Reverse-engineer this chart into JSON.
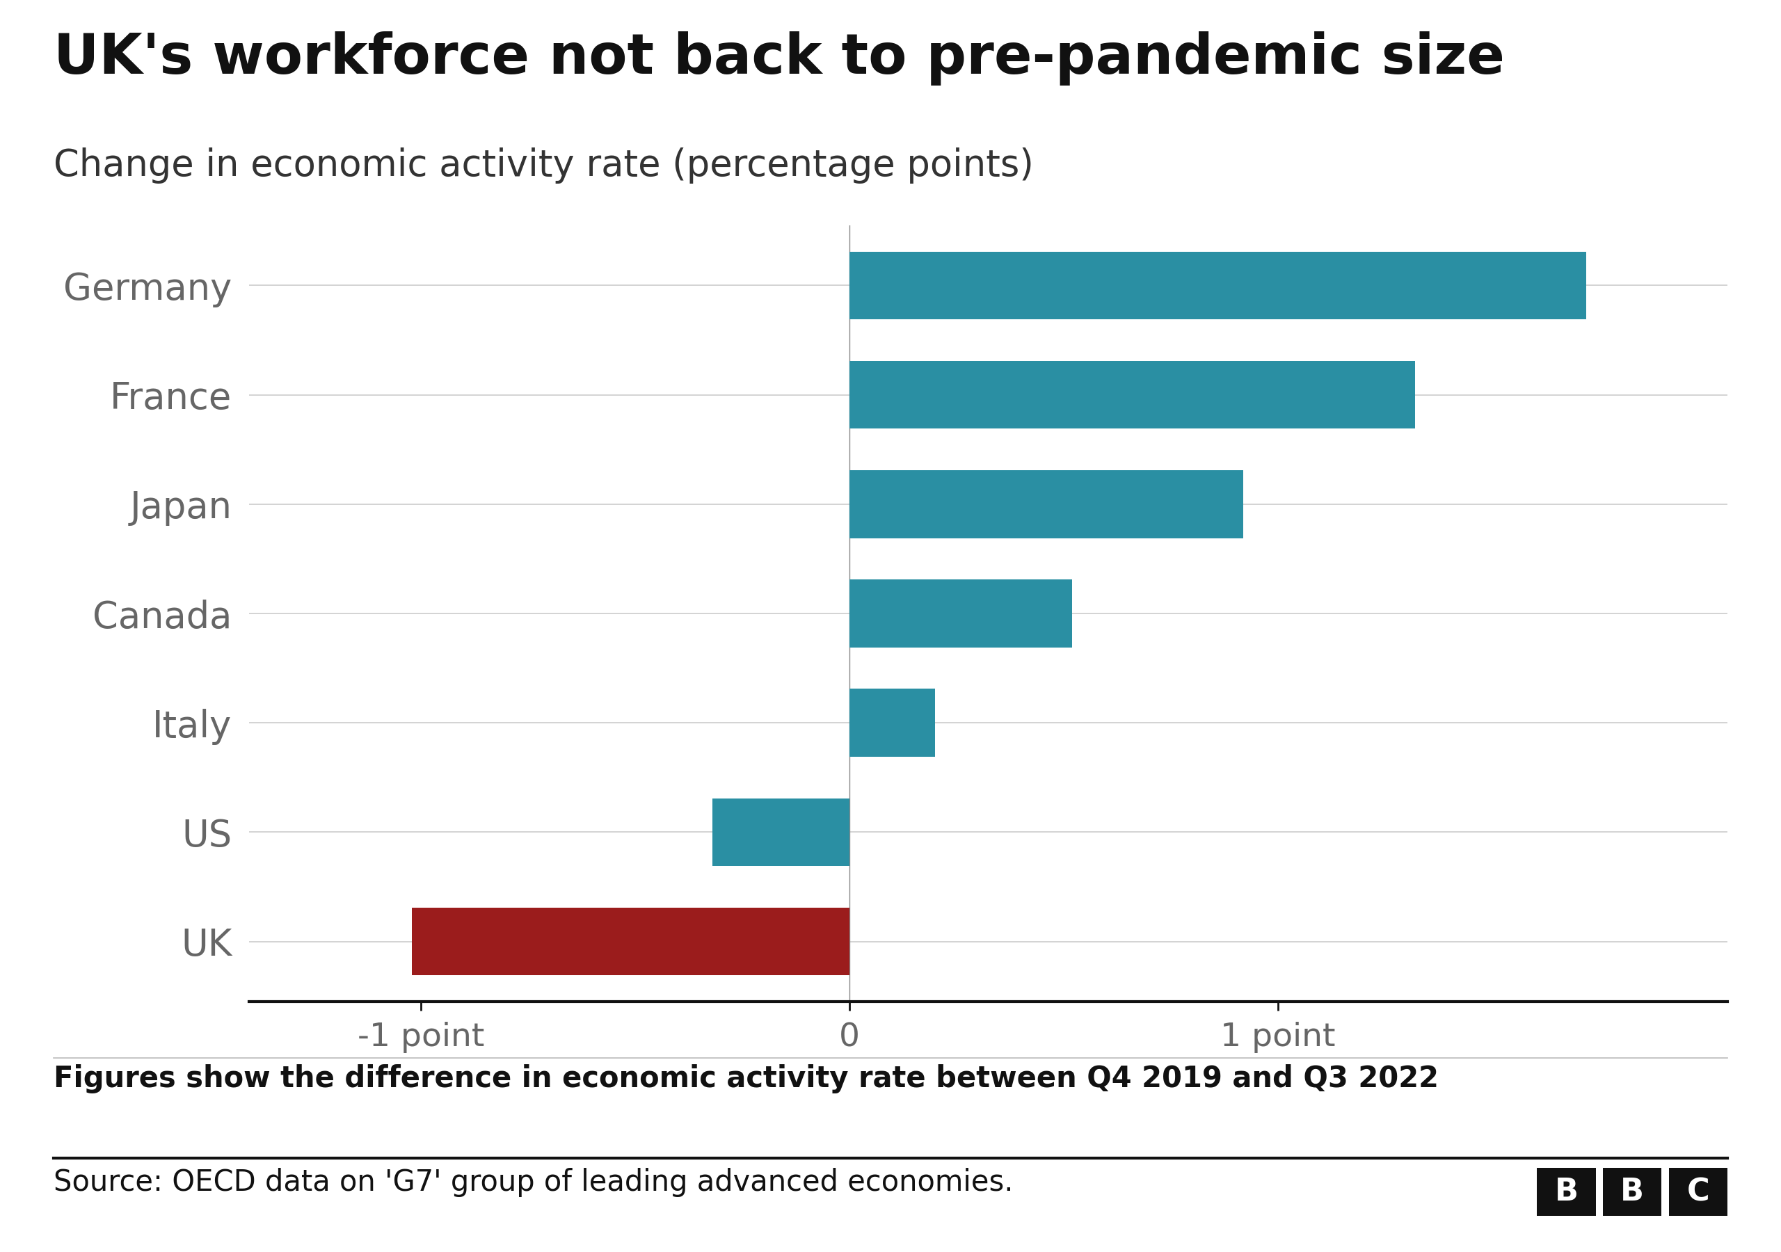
{
  "title": "UK's workforce not back to pre-pandemic size",
  "subtitle": "Change in economic activity rate (percentage points)",
  "categories_display_top_to_bottom": [
    "Germany",
    "France",
    "Japan",
    "Canada",
    "Italy",
    "US",
    "UK"
  ],
  "categories_plot_order": [
    "UK",
    "US",
    "Italy",
    "Canada",
    "Japan",
    "France",
    "Germany"
  ],
  "values_plot_order": [
    -1.02,
    -0.32,
    0.2,
    0.52,
    0.92,
    1.32,
    1.72
  ],
  "bar_colors_plot_order": [
    "#9b1c1c",
    "#2a8fa3",
    "#2a8fa3",
    "#2a8fa3",
    "#2a8fa3",
    "#2a8fa3",
    "#2a8fa3"
  ],
  "xtick_positions": [
    -1,
    0,
    1
  ],
  "xtick_labels": [
    "-1 point",
    "0",
    "1 point"
  ],
  "xlim": [
    -1.4,
    2.05
  ],
  "footnote": "Figures show the difference in economic activity rate between Q4 2019 and Q3 2022",
  "source": "Source: OECD data on 'G7' group of leading advanced economies.",
  "background_color": "#ffffff",
  "title_fontsize": 58,
  "subtitle_fontsize": 38,
  "label_fontsize": 38,
  "tick_fontsize": 34,
  "footnote_fontsize": 30,
  "source_fontsize": 30,
  "grid_color": "#cccccc",
  "axis_color": "#111111",
  "label_color": "#666666",
  "bar_height": 0.62
}
